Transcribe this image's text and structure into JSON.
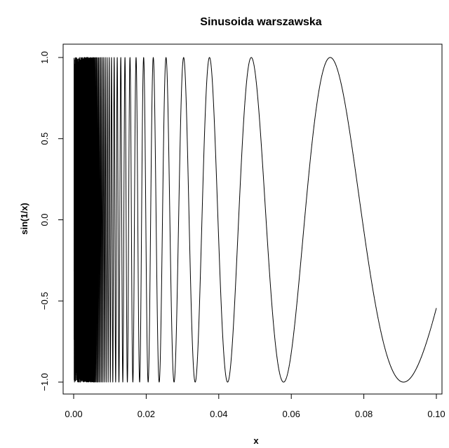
{
  "chart_data": {
    "type": "line",
    "title": "Sinusoida warszawska",
    "xlabel": "x",
    "ylabel": "sin(1/x)",
    "xlim": [
      0.0,
      0.1
    ],
    "ylim": [
      -1.0,
      1.0
    ],
    "xticks": [
      0.0,
      0.02,
      0.04,
      0.06,
      0.08,
      0.1
    ],
    "xtick_labels": [
      "0.00",
      "0.02",
      "0.04",
      "0.06",
      "0.08",
      "0.10"
    ],
    "yticks": [
      -1.0,
      -0.5,
      0.0,
      0.5,
      1.0
    ],
    "ytick_labels": [
      "−1.0",
      "−0.5",
      "0.0",
      "0.5",
      "1.0"
    ],
    "series": [
      {
        "function": "sin(1/x)",
        "x_start": 0.0001,
        "x_end": 0.1,
        "color": "#000000"
      }
    ],
    "grid": false,
    "legend": "none"
  }
}
